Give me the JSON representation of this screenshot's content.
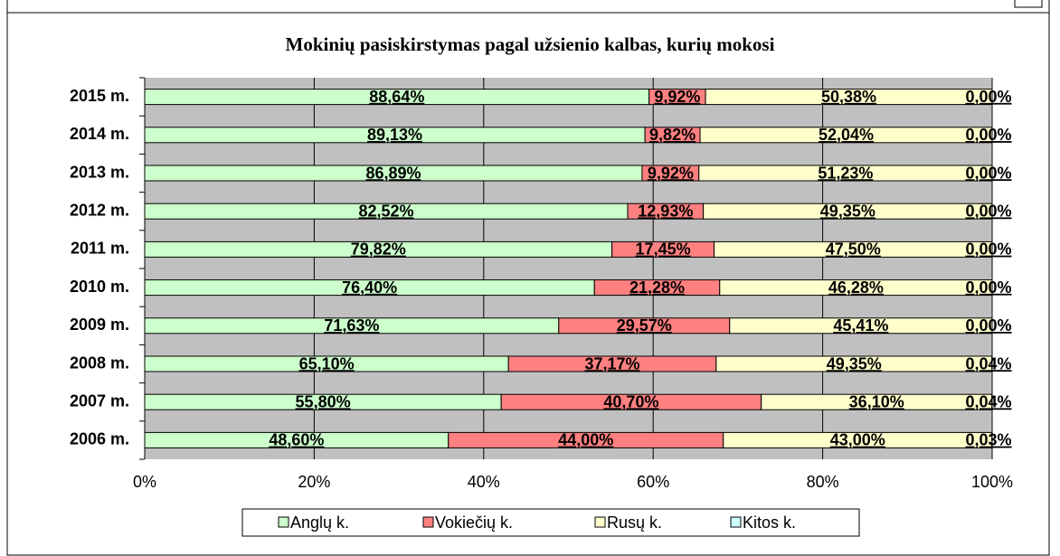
{
  "chart_data": {
    "type": "bar",
    "orientation": "horizontal",
    "stack": "percent",
    "title": "Mokinių pasiskirstymas pagal užsienio kalbas, kurių mokosi",
    "categories": [
      "2015 m.",
      "2014 m.",
      "2013 m.",
      "2012 m.",
      "2011 m.",
      "2010 m.",
      "2009 m.",
      "2008 m.",
      "2007 m.",
      "2006 m."
    ],
    "series": [
      {
        "name": "Anglų k.",
        "color": "#ccffcc",
        "values": [
          88.64,
          89.13,
          86.89,
          82.52,
          79.82,
          76.4,
          71.63,
          65.1,
          55.8,
          48.6
        ],
        "value_labels": [
          "88,64%",
          "89,13%",
          "86,89%",
          "82,52%",
          "79,82%",
          "76,40%",
          "71,63%",
          "65,10%",
          "55,80%",
          "48,60%"
        ]
      },
      {
        "name": "Vokiečių k.",
        "color": "#ff8080",
        "values": [
          9.92,
          9.82,
          9.92,
          12.93,
          17.45,
          21.28,
          29.57,
          37.17,
          40.7,
          44.0
        ],
        "value_labels": [
          "9,92%",
          "9,82%",
          "9,92%",
          "12,93%",
          "17,45%",
          "21,28%",
          "29,57%",
          "37,17%",
          "40,70%",
          "44,00%"
        ]
      },
      {
        "name": "Rusų k.",
        "color": "#ffffcc",
        "values": [
          50.38,
          52.04,
          51.23,
          49.35,
          47.5,
          46.28,
          45.41,
          49.35,
          36.1,
          43.0
        ],
        "value_labels": [
          "50,38%",
          "52,04%",
          "51,23%",
          "49,35%",
          "47,50%",
          "46,28%",
          "45,41%",
          "49,35%",
          "36,10%",
          "43,00%"
        ]
      },
      {
        "name": "Kitos k.",
        "color": "#ccffff",
        "values": [
          0.0,
          0.0,
          0.0,
          0.0,
          0.0,
          0.0,
          0.0,
          0.04,
          0.04,
          0.03
        ],
        "value_labels": [
          "0,00%",
          "0,00%",
          "0,00%",
          "0,00%",
          "0,00%",
          "0,00%",
          "0,00%",
          "0,04%",
          "0,04%",
          "0,03%"
        ]
      }
    ],
    "xlim": [
      0,
      100
    ],
    "xticks": [
      {
        "value": 0,
        "label": "0%"
      },
      {
        "value": 20,
        "label": "20%"
      },
      {
        "value": 40,
        "label": "40%"
      },
      {
        "value": 60,
        "label": "60%"
      },
      {
        "value": 80,
        "label": "80%"
      },
      {
        "value": 100,
        "label": "100%"
      }
    ],
    "grid": true,
    "legend": "bottom"
  }
}
